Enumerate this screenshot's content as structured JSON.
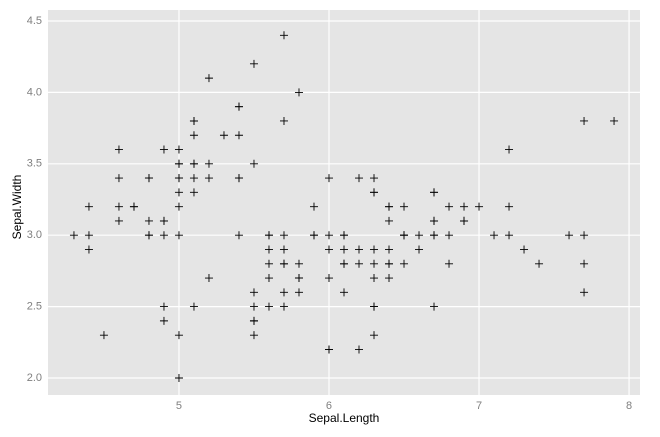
{
  "chart_data": {
    "type": "scatter",
    "x_label": "Sepal.Length",
    "y_label": "Sepal.Width",
    "color": "#000000",
    "panel_color": "#e5e5e5",
    "grid": true,
    "xlim": [
      4.127,
      8.073
    ],
    "ylim": [
      1.881,
      4.577
    ],
    "xticks": [
      5,
      6,
      7,
      8
    ],
    "yticks": [
      {
        "value": 2,
        "label": "2.0"
      },
      2.5,
      {
        "value": 3,
        "label": "3.0"
      },
      3.5,
      {
        "value": 4,
        "label": "4.0"
      },
      4.5
    ],
    "x": [
      5.1,
      4.9,
      4.7,
      4.6,
      5.0,
      5.4,
      4.6,
      5.0,
      4.4,
      4.9,
      5.4,
      4.8,
      4.8,
      4.3,
      5.8,
      5.7,
      5.4,
      5.1,
      5.7,
      5.1,
      5.4,
      5.1,
      4.6,
      5.1,
      4.8,
      5.0,
      5.0,
      5.2,
      5.2,
      4.7,
      4.8,
      5.4,
      5.2,
      5.5,
      4.9,
      5.0,
      5.5,
      4.9,
      4.4,
      5.1,
      5.0,
      4.5,
      4.4,
      5.0,
      5.1,
      4.8,
      5.1,
      4.6,
      5.3,
      5.0,
      7.0,
      6.4,
      6.9,
      5.5,
      6.5,
      5.7,
      6.3,
      4.9,
      6.6,
      5.2,
      5.0,
      5.9,
      6.0,
      6.1,
      5.6,
      6.7,
      5.6,
      5.8,
      6.2,
      5.6,
      5.9,
      6.1,
      6.3,
      6.1,
      6.4,
      6.6,
      6.8,
      6.7,
      6.0,
      5.7,
      5.5,
      5.5,
      5.8,
      6.0,
      5.4,
      6.0,
      6.7,
      6.3,
      5.6,
      5.5,
      5.5,
      6.1,
      5.8,
      5.0,
      5.6,
      5.7,
      5.7,
      6.2,
      5.1,
      5.7,
      6.3,
      5.8,
      7.1,
      6.3,
      6.5,
      7.6,
      4.9,
      7.3,
      6.7,
      7.2,
      6.5,
      6.4,
      6.8,
      5.7,
      5.8,
      6.4,
      6.5,
      7.7,
      7.7,
      6.0,
      6.9,
      5.6,
      7.7,
      6.3,
      6.7,
      7.2,
      6.2,
      6.1,
      6.4,
      7.2,
      7.4,
      7.9,
      6.4,
      6.3,
      6.1,
      7.7,
      6.3,
      6.4,
      6.0,
      6.9,
      6.7,
      6.9,
      5.8,
      6.8,
      6.7,
      6.7,
      6.3,
      6.5,
      6.2,
      5.9
    ],
    "y": [
      3.5,
      3.0,
      3.2,
      3.1,
      3.6,
      3.9,
      3.4,
      3.4,
      2.9,
      3.1,
      3.7,
      3.4,
      3.0,
      3.0,
      4.0,
      4.4,
      3.9,
      3.5,
      3.8,
      3.8,
      3.4,
      3.7,
      3.6,
      3.3,
      3.4,
      3.0,
      3.4,
      3.5,
      3.4,
      3.2,
      3.1,
      3.4,
      4.1,
      4.2,
      3.1,
      3.2,
      3.5,
      3.6,
      3.0,
      3.4,
      3.5,
      2.3,
      3.2,
      3.5,
      3.8,
      3.0,
      3.8,
      3.2,
      3.7,
      3.3,
      3.2,
      3.2,
      3.1,
      2.3,
      2.8,
      2.8,
      3.3,
      2.4,
      2.9,
      2.7,
      2.0,
      3.0,
      2.2,
      2.9,
      2.9,
      3.1,
      3.0,
      2.7,
      2.2,
      2.5,
      3.2,
      2.8,
      2.5,
      2.8,
      2.9,
      3.0,
      2.8,
      3.0,
      2.9,
      2.6,
      2.4,
      2.4,
      2.7,
      2.7,
      3.0,
      3.4,
      3.1,
      2.3,
      3.0,
      2.5,
      2.6,
      3.0,
      2.6,
      2.3,
      2.7,
      3.0,
      2.9,
      2.9,
      2.5,
      2.8,
      3.3,
      2.7,
      3.0,
      2.9,
      3.0,
      3.0,
      2.5,
      2.9,
      2.5,
      3.6,
      3.2,
      2.7,
      3.0,
      2.5,
      2.8,
      3.2,
      3.0,
      3.8,
      2.6,
      2.2,
      3.2,
      2.8,
      2.8,
      2.7,
      3.3,
      3.2,
      2.8,
      3.0,
      2.8,
      3.0,
      2.8,
      3.8,
      2.8,
      2.8,
      2.6,
      3.0,
      3.4,
      3.1,
      3.0,
      3.1,
      3.1,
      3.1,
      2.7,
      3.2,
      3.3,
      3.0,
      2.5,
      3.0,
      3.4,
      3.0
    ]
  }
}
